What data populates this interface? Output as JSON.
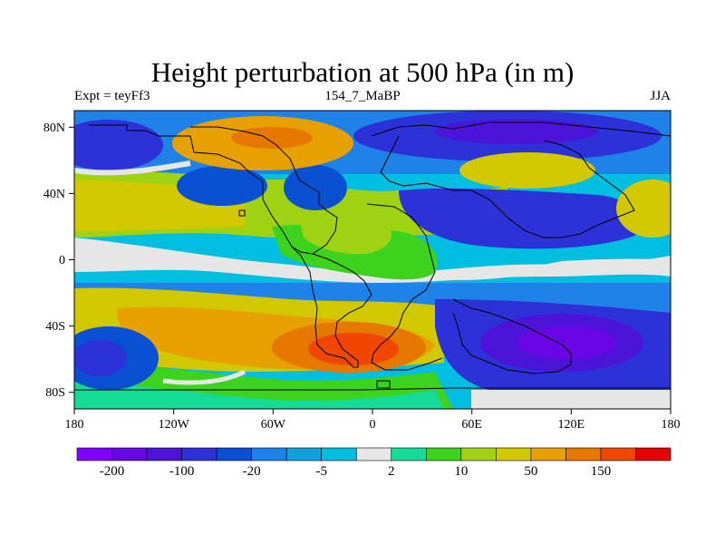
{
  "title": "Height perturbation at 500 hPa (in m)",
  "subtitle": {
    "left": "Expt = teyFf3",
    "center": "154_7_MaBP",
    "right": "JJA"
  },
  "map": {
    "lon_ticks": [
      "180",
      "120W",
      "60W",
      "0",
      "60E",
      "120E",
      "180"
    ],
    "lat_ticks": [
      "80N",
      "40N",
      "0",
      "40S",
      "80S"
    ],
    "lon_range": [
      -180,
      180
    ],
    "lat_range": [
      -90,
      90
    ]
  },
  "colorbar": {
    "colors": [
      "#7f00ff",
      "#6a06e6",
      "#4b14d8",
      "#2d32d8",
      "#0a50d2",
      "#1e82e6",
      "#12a0dc",
      "#00bee0",
      "#e6e6e6",
      "#14dc96",
      "#3cd21e",
      "#a0d214",
      "#d2c800",
      "#e6a000",
      "#e67800",
      "#f04600",
      "#e60000"
    ],
    "labels": [
      "-200",
      "-100",
      "-20",
      "-5",
      "2",
      "10",
      "50",
      "150"
    ]
  },
  "chart_data": {
    "type": "heatmap",
    "title": "Height perturbation at 500 hPa (in m)",
    "variable": "500 hPa geopotential height perturbation",
    "units": "m",
    "experiment": "teyFf3",
    "period": "154_7_MaBP",
    "season": "JJA",
    "x_range": [
      -180,
      180
    ],
    "y_range": [
      -90,
      90
    ],
    "colorbar_labels": [
      -200,
      -100,
      -20,
      -5,
      2,
      10,
      50,
      150
    ],
    "features": [
      {
        "lon": -67,
        "lat": 70,
        "approx_value": 50,
        "label": "positive, N Atlantic/Greenland"
      },
      {
        "lon": -85,
        "lat": 42,
        "approx_value": -100,
        "label": "negative, N America"
      },
      {
        "lon": -42,
        "lat": 42,
        "approx_value": -100,
        "label": "negative, W Atlantic"
      },
      {
        "lon": -178,
        "lat": 62,
        "approx_value": -100,
        "label": "negative, Bering"
      },
      {
        "lon": 95,
        "lat": 65,
        "approx_value": -100,
        "label": "negative, Siberia"
      },
      {
        "lon": 105,
        "lat": 30,
        "approx_value": -100,
        "label": "negative, Asia"
      },
      {
        "lon": 45,
        "lat": 58,
        "approx_value": 50,
        "label": "positive, Europe"
      },
      {
        "lon": 120,
        "lat": 55,
        "approx_value": 50,
        "label": "positive, E Asia"
      },
      {
        "lon": -5,
        "lat": -52,
        "approx_value": 150,
        "label": "positive, S Atlantic"
      },
      {
        "lon": -80,
        "lat": -42,
        "approx_value": 50,
        "label": "positive, SE Pacific"
      },
      {
        "lon": 115,
        "lat": -45,
        "approx_value": -200,
        "label": "negative, S Indian Ocean"
      },
      {
        "lon": -160,
        "lat": -55,
        "approx_value": -100,
        "label": "negative, SW Pacific"
      },
      {
        "lon": -30,
        "lat": 5,
        "approx_value": 10,
        "label": "positive, tropical Atlantic"
      }
    ]
  }
}
